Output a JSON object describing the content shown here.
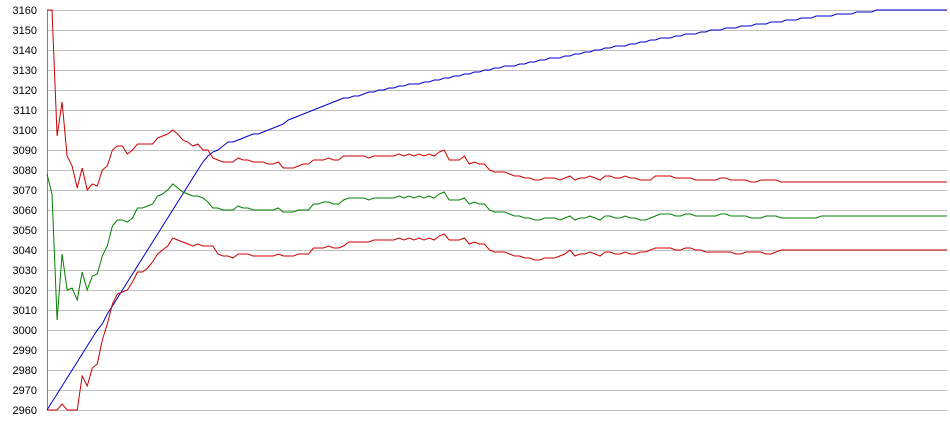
{
  "chart_data": {
    "type": "line",
    "title": "",
    "xlabel": "",
    "ylabel": "",
    "ylim": [
      2960,
      3160
    ],
    "yticks": [
      2960,
      2970,
      2980,
      2990,
      3000,
      3010,
      3020,
      3030,
      3040,
      3050,
      3060,
      3070,
      3080,
      3090,
      3100,
      3110,
      3120,
      3130,
      3140,
      3150,
      3160
    ],
    "grid": true,
    "legend": "none",
    "x": [
      0,
      1,
      2,
      3,
      4,
      5,
      6,
      7,
      8,
      9,
      10,
      11,
      12,
      13,
      14,
      15,
      16,
      17,
      18,
      19,
      20,
      21,
      22,
      23,
      24,
      25,
      26,
      27,
      28,
      29,
      30,
      31,
      32,
      33,
      34,
      35,
      36,
      37,
      38,
      39,
      40,
      41,
      42,
      43,
      44,
      45,
      46,
      47,
      48,
      49,
      50,
      51,
      52,
      53,
      54,
      55,
      56,
      57,
      58,
      59,
      60,
      61,
      62,
      63,
      64,
      65,
      66,
      67,
      68,
      69,
      70,
      71,
      72,
      73,
      74,
      75,
      76,
      77,
      78,
      79,
      80,
      81,
      82,
      83,
      84,
      85,
      86,
      87,
      88,
      89,
      90,
      91,
      92,
      93,
      94,
      95,
      96,
      97,
      98,
      99,
      100,
      101,
      102,
      103,
      104,
      105,
      106,
      107,
      108,
      109,
      110,
      111,
      112,
      113,
      114,
      115,
      116,
      117,
      118,
      119,
      120,
      121,
      122,
      123,
      124,
      125,
      126,
      127,
      128,
      129,
      130,
      131,
      132,
      133,
      134,
      135,
      136,
      137,
      138,
      139,
      140,
      141,
      142,
      143,
      144,
      145,
      146,
      147,
      148,
      149,
      150,
      151,
      152,
      153,
      154,
      155,
      156,
      157,
      158,
      159,
      160,
      161,
      162,
      163,
      164,
      165,
      166,
      167,
      168,
      169,
      170,
      171,
      172,
      173,
      174,
      175,
      176,
      177,
      178,
      179
    ],
    "series": [
      {
        "color": "#0000cc",
        "values": [
          2960,
          2964,
          2968,
          2972,
          2976,
          2980,
          2984,
          2988,
          2992,
          2996,
          3000,
          3003,
          3008,
          3012,
          3016,
          3020,
          3024,
          3028,
          3032,
          3036,
          3040,
          3044,
          3048,
          3052,
          3056,
          3060,
          3064,
          3068,
          3072,
          3076,
          3080,
          3084,
          3087,
          3089,
          3090,
          3092,
          3094,
          3094,
          3095,
          3096,
          3097,
          3098,
          3098,
          3099,
          3100,
          3101,
          3102,
          3103,
          3105,
          3106,
          3107,
          3108,
          3109,
          3110,
          3111,
          3112,
          3113,
          3114,
          3115,
          3116,
          3116,
          3117,
          3117,
          3118,
          3119,
          3119,
          3120,
          3120,
          3121,
          3121,
          3122,
          3122,
          3123,
          3123,
          3123,
          3124,
          3124,
          3125,
          3125,
          3126,
          3126,
          3127,
          3127,
          3128,
          3128,
          3129,
          3129,
          3130,
          3130,
          3131,
          3131,
          3132,
          3132,
          3132,
          3133,
          3133,
          3134,
          3134,
          3135,
          3135,
          3136,
          3136,
          3136,
          3137,
          3137,
          3138,
          3138,
          3139,
          3139,
          3140,
          3140,
          3141,
          3141,
          3142,
          3142,
          3142,
          3143,
          3143,
          3144,
          3144,
          3145,
          3145,
          3146,
          3146,
          3146,
          3147,
          3147,
          3148,
          3148,
          3148,
          3149,
          3149,
          3150,
          3150,
          3150,
          3151,
          3151,
          3151,
          3152,
          3152,
          3152,
          3153,
          3153,
          3153,
          3154,
          3154,
          3154,
          3155,
          3155,
          3155,
          3156,
          3156,
          3156,
          3157,
          3157,
          3157,
          3157,
          3158,
          3158,
          3158,
          3158,
          3159,
          3159,
          3159,
          3159,
          3160,
          3160,
          3160,
          3160,
          3160,
          3160,
          3160,
          3160,
          3160,
          3160,
          3160,
          3160,
          3160,
          3160,
          3160
        ]
      },
      {
        "color": "#cc0000",
        "values": [
          3160,
          3160,
          3097,
          3114,
          3087,
          3082,
          3071,
          3081,
          3070,
          3073,
          3072,
          3080,
          3082,
          3090,
          3092,
          3092,
          3088,
          3090,
          3093,
          3093,
          3093,
          3093,
          3096,
          3097,
          3098,
          3100,
          3098,
          3095,
          3094,
          3092,
          3093,
          3090,
          3090,
          3086,
          3085,
          3084,
          3084,
          3084,
          3086,
          3085,
          3085,
          3084,
          3084,
          3084,
          3083,
          3083,
          3084,
          3081,
          3081,
          3081,
          3082,
          3083,
          3083,
          3085,
          3085,
          3085,
          3086,
          3085,
          3085,
          3087,
          3087,
          3087,
          3087,
          3087,
          3086,
          3087,
          3087,
          3087,
          3087,
          3087,
          3088,
          3087,
          3088,
          3087,
          3088,
          3087,
          3088,
          3087,
          3089,
          3090,
          3085,
          3085,
          3085,
          3087,
          3083,
          3084,
          3083,
          3083,
          3080,
          3079,
          3079,
          3079,
          3078,
          3077,
          3077,
          3076,
          3076,
          3075,
          3075,
          3076,
          3076,
          3076,
          3075,
          3076,
          3077,
          3075,
          3076,
          3076,
          3077,
          3076,
          3075,
          3077,
          3077,
          3076,
          3076,
          3077,
          3076,
          3076,
          3075,
          3075,
          3075,
          3077,
          3077,
          3077,
          3077,
          3076,
          3076,
          3076,
          3076,
          3075,
          3075,
          3075,
          3075,
          3075,
          3076,
          3076,
          3075,
          3075,
          3075,
          3075,
          3074,
          3074,
          3075,
          3075,
          3075,
          3075,
          3074,
          3074,
          3074,
          3074,
          3074,
          3074,
          3074,
          3074,
          3074,
          3074,
          3074,
          3074,
          3074,
          3074,
          3074,
          3074,
          3074,
          3074,
          3074,
          3074,
          3074,
          3074,
          3074,
          3074,
          3074,
          3074,
          3074,
          3074,
          3074,
          3074,
          3074,
          3074,
          3074,
          3074
        ]
      },
      {
        "color": "#008000",
        "values": [
          3078,
          3068,
          3005,
          3038,
          3020,
          3021,
          3015,
          3029,
          3020,
          3027,
          3028,
          3037,
          3042,
          3052,
          3055,
          3055,
          3054,
          3056,
          3061,
          3061,
          3062,
          3063,
          3067,
          3068,
          3070,
          3073,
          3071,
          3069,
          3068,
          3067,
          3067,
          3066,
          3064,
          3061,
          3061,
          3060,
          3060,
          3060,
          3062,
          3061,
          3061,
          3060,
          3060,
          3060,
          3060,
          3060,
          3061,
          3059,
          3059,
          3059,
          3060,
          3060,
          3060,
          3063,
          3063,
          3064,
          3064,
          3063,
          3063,
          3065,
          3066,
          3066,
          3066,
          3066,
          3065,
          3066,
          3066,
          3066,
          3066,
          3066,
          3067,
          3066,
          3067,
          3066,
          3067,
          3066,
          3067,
          3066,
          3068,
          3069,
          3065,
          3065,
          3065,
          3066,
          3063,
          3064,
          3063,
          3063,
          3060,
          3059,
          3059,
          3059,
          3058,
          3057,
          3057,
          3056,
          3056,
          3055,
          3055,
          3056,
          3056,
          3056,
          3055,
          3056,
          3057,
          3055,
          3056,
          3056,
          3057,
          3056,
          3055,
          3057,
          3057,
          3056,
          3056,
          3057,
          3056,
          3056,
          3055,
          3055,
          3056,
          3057,
          3058,
          3058,
          3058,
          3057,
          3057,
          3058,
          3058,
          3057,
          3057,
          3057,
          3057,
          3057,
          3058,
          3058,
          3057,
          3057,
          3057,
          3057,
          3056,
          3056,
          3056,
          3057,
          3057,
          3057,
          3056,
          3056,
          3056,
          3056,
          3056,
          3056,
          3056,
          3056,
          3057,
          3057,
          3057,
          3057,
          3057,
          3057,
          3057,
          3057,
          3057,
          3057,
          3057,
          3057,
          3057,
          3057,
          3057,
          3057,
          3057,
          3057,
          3057,
          3057,
          3057,
          3057,
          3057,
          3057,
          3057,
          3057
        ]
      },
      {
        "color": "#cc0000",
        "values": [
          2960,
          2960,
          2960,
          2963,
          2960,
          2960,
          2960,
          2977,
          2972,
          2981,
          2983,
          2995,
          3003,
          3013,
          3018,
          3019,
          3020,
          3024,
          3029,
          3029,
          3031,
          3034,
          3038,
          3040,
          3042,
          3046,
          3045,
          3044,
          3043,
          3042,
          3043,
          3042,
          3042,
          3042,
          3038,
          3037,
          3037,
          3036,
          3038,
          3038,
          3038,
          3037,
          3037,
          3037,
          3037,
          3037,
          3038,
          3037,
          3037,
          3037,
          3038,
          3038,
          3038,
          3041,
          3041,
          3041,
          3042,
          3041,
          3041,
          3042,
          3044,
          3044,
          3044,
          3044,
          3044,
          3045,
          3045,
          3045,
          3045,
          3045,
          3046,
          3045,
          3046,
          3045,
          3046,
          3045,
          3046,
          3045,
          3047,
          3048,
          3045,
          3045,
          3045,
          3046,
          3043,
          3044,
          3043,
          3043,
          3040,
          3039,
          3039,
          3039,
          3038,
          3037,
          3037,
          3036,
          3036,
          3035,
          3035,
          3036,
          3036,
          3036,
          3037,
          3038,
          3040,
          3037,
          3038,
          3038,
          3039,
          3038,
          3037,
          3039,
          3039,
          3038,
          3038,
          3039,
          3038,
          3038,
          3039,
          3039,
          3040,
          3041,
          3041,
          3041,
          3041,
          3040,
          3040,
          3041,
          3041,
          3040,
          3040,
          3039,
          3039,
          3039,
          3039,
          3039,
          3039,
          3038,
          3038,
          3039,
          3039,
          3039,
          3039,
          3038,
          3038,
          3039,
          3040,
          3040,
          3040,
          3040,
          3040,
          3040,
          3040,
          3040,
          3040,
          3040,
          3040,
          3040,
          3040,
          3040,
          3040,
          3040,
          3040,
          3040,
          3040,
          3040,
          3040,
          3040,
          3040,
          3040,
          3040,
          3040,
          3040,
          3040,
          3040,
          3040,
          3040,
          3040,
          3040,
          3040
        ]
      }
    ]
  }
}
